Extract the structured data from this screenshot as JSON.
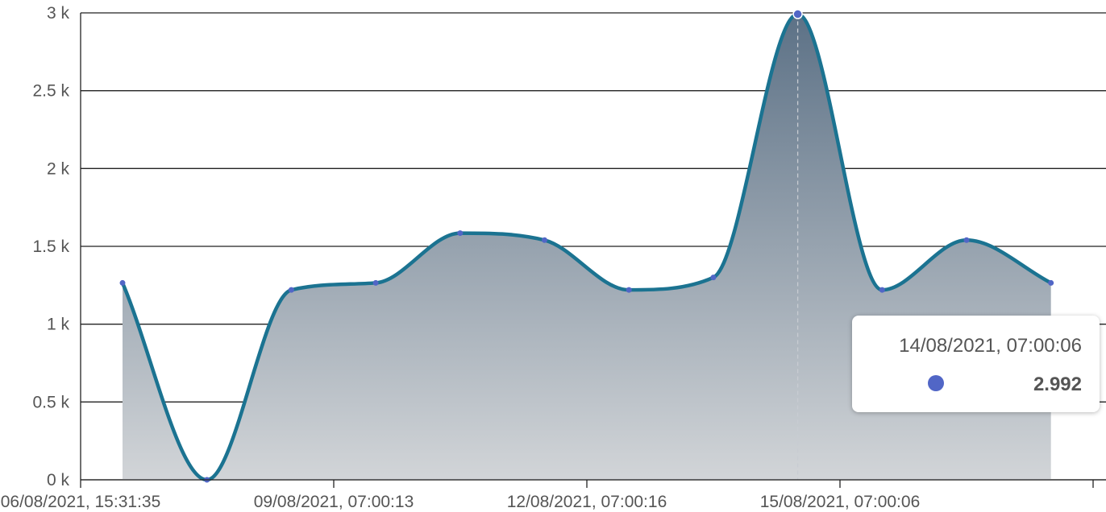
{
  "chart_data": {
    "type": "area",
    "title": "",
    "xlabel": "",
    "ylabel": "",
    "y_tick_labels": [
      "0 k",
      "0.5 k",
      "1 k",
      "1.5 k",
      "2 k",
      "2.5 k",
      "3 k"
    ],
    "x_tick_labels": [
      "06/08/2021, 15:31:35",
      "09/08/2021, 07:00:13",
      "12/08/2021, 07:00:16",
      "15/08/2021, 07:00:06"
    ],
    "ylim": [
      0,
      3000
    ],
    "grid": true,
    "smooth": true,
    "series": [
      {
        "values": [
          1265,
          0,
          1220,
          1265,
          1585,
          1540,
          1220,
          1300,
          2992,
          1220,
          1540,
          1265
        ]
      }
    ],
    "highlighted_point_index": 8,
    "tooltip": {
      "title": "14/08/2021, 07:00:06",
      "value": "2.992"
    },
    "colors": {
      "line": "#1b7391",
      "marker": "#5166c6",
      "area_top": "#5c7186",
      "area_bottom": "#d2d5d8",
      "grid": "#222222",
      "axis_text": "#555555"
    }
  }
}
